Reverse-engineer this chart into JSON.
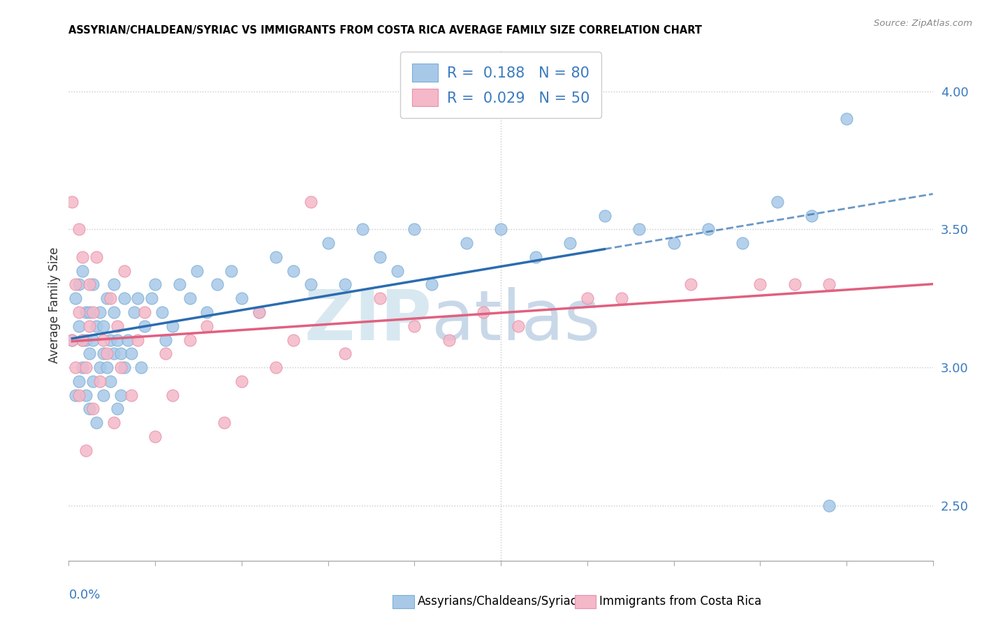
{
  "title": "ASSYRIAN/CHALDEAN/SYRIAC VS IMMIGRANTS FROM COSTA RICA AVERAGE FAMILY SIZE CORRELATION CHART",
  "source": "Source: ZipAtlas.com",
  "ylabel": "Average Family Size",
  "right_yticks": [
    2.5,
    3.0,
    3.5,
    4.0
  ],
  "blue_color": "#a8c8e8",
  "pink_color": "#f4b8c8",
  "blue_edge_color": "#7bafd4",
  "pink_edge_color": "#e890a8",
  "blue_line_color": "#2b6cb0",
  "pink_line_color": "#e06080",
  "R_blue": 0.188,
  "N_blue": 80,
  "R_pink": 0.029,
  "N_pink": 50,
  "xlim": [
    0,
    0.25
  ],
  "ylim": [
    2.3,
    4.15
  ],
  "grid_yticks": [
    2.5,
    3.0,
    3.5,
    4.0
  ],
  "xtick_count": 11,
  "blue_scatter_x": [
    0.001,
    0.002,
    0.002,
    0.003,
    0.003,
    0.003,
    0.004,
    0.004,
    0.004,
    0.005,
    0.005,
    0.005,
    0.006,
    0.006,
    0.006,
    0.007,
    0.007,
    0.007,
    0.008,
    0.008,
    0.009,
    0.009,
    0.01,
    0.01,
    0.01,
    0.011,
    0.011,
    0.012,
    0.012,
    0.013,
    0.013,
    0.013,
    0.014,
    0.014,
    0.015,
    0.015,
    0.016,
    0.016,
    0.017,
    0.018,
    0.019,
    0.02,
    0.021,
    0.022,
    0.024,
    0.025,
    0.027,
    0.028,
    0.03,
    0.032,
    0.035,
    0.037,
    0.04,
    0.043,
    0.047,
    0.05,
    0.055,
    0.06,
    0.065,
    0.07,
    0.075,
    0.08,
    0.085,
    0.09,
    0.095,
    0.1,
    0.105,
    0.115,
    0.125,
    0.135,
    0.145,
    0.155,
    0.165,
    0.175,
    0.185,
    0.195,
    0.205,
    0.215,
    0.22,
    0.225
  ],
  "blue_scatter_y": [
    3.1,
    3.25,
    2.9,
    3.15,
    2.95,
    3.3,
    3.1,
    3.0,
    3.35,
    3.2,
    2.9,
    3.1,
    3.05,
    2.85,
    3.2,
    3.1,
    2.95,
    3.3,
    3.15,
    2.8,
    3.0,
    3.2,
    3.15,
    2.9,
    3.05,
    3.25,
    3.0,
    3.1,
    2.95,
    3.2,
    3.05,
    3.3,
    3.1,
    2.85,
    3.05,
    2.9,
    3.0,
    3.25,
    3.1,
    3.05,
    3.2,
    3.25,
    3.0,
    3.15,
    3.25,
    3.3,
    3.2,
    3.1,
    3.15,
    3.3,
    3.25,
    3.35,
    3.2,
    3.3,
    3.35,
    3.25,
    3.2,
    3.4,
    3.35,
    3.3,
    3.45,
    3.3,
    3.5,
    3.4,
    3.35,
    3.5,
    3.3,
    3.45,
    3.5,
    3.4,
    3.45,
    3.55,
    3.5,
    3.45,
    3.5,
    3.45,
    3.6,
    3.55,
    2.5,
    3.9
  ],
  "pink_scatter_x": [
    0.001,
    0.001,
    0.002,
    0.002,
    0.003,
    0.003,
    0.003,
    0.004,
    0.004,
    0.005,
    0.005,
    0.006,
    0.006,
    0.007,
    0.007,
    0.008,
    0.009,
    0.01,
    0.011,
    0.012,
    0.013,
    0.014,
    0.015,
    0.016,
    0.018,
    0.02,
    0.022,
    0.025,
    0.028,
    0.03,
    0.035,
    0.04,
    0.045,
    0.05,
    0.055,
    0.06,
    0.065,
    0.07,
    0.08,
    0.09,
    0.1,
    0.11,
    0.12,
    0.13,
    0.15,
    0.16,
    0.18,
    0.2,
    0.21,
    0.22
  ],
  "pink_scatter_y": [
    3.1,
    3.6,
    3.3,
    3.0,
    3.5,
    3.2,
    2.9,
    3.4,
    3.1,
    2.7,
    3.0,
    3.3,
    3.15,
    2.85,
    3.2,
    3.4,
    2.95,
    3.1,
    3.05,
    3.25,
    2.8,
    3.15,
    3.0,
    3.35,
    2.9,
    3.1,
    3.2,
    2.75,
    3.05,
    2.9,
    3.1,
    3.15,
    2.8,
    2.95,
    3.2,
    3.0,
    3.1,
    3.6,
    3.05,
    3.25,
    3.15,
    3.1,
    3.2,
    3.15,
    3.25,
    3.25,
    3.3,
    3.3,
    3.3,
    3.3
  ],
  "blue_trend_solid_end": 0.155,
  "watermark_zip_color": "#d8e8f0",
  "watermark_atlas_color": "#c8d8e8"
}
